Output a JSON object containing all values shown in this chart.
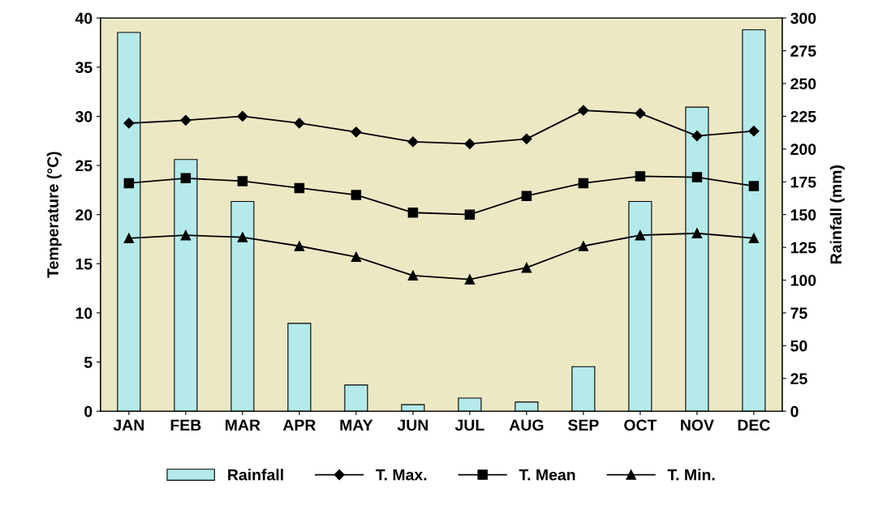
{
  "chart_data": {
    "type": "bar",
    "categories": [
      "JAN",
      "FEB",
      "MAR",
      "APR",
      "MAY",
      "JUN",
      "JUL",
      "AUG",
      "SEP",
      "OCT",
      "NOV",
      "DEC"
    ],
    "ylabel": "Temperature (°C)",
    "y2label": "Rainfall (mm)",
    "ylim": [
      0,
      40
    ],
    "yticks": [
      0,
      5,
      10,
      15,
      20,
      25,
      30,
      35,
      40
    ],
    "y2lim": [
      0,
      300
    ],
    "y2ticks": [
      0,
      25,
      50,
      75,
      100,
      125,
      150,
      175,
      200,
      225,
      250,
      275,
      300
    ],
    "grid": false,
    "legend": "bottom",
    "series": [
      {
        "name": "Rainfall",
        "axis": "y2",
        "color": "#b4eaea",
        "values": [
          289,
          192,
          160,
          67,
          20,
          5,
          10,
          7,
          34,
          160,
          232,
          291
        ]
      },
      {
        "name": "T. Max.",
        "type": "line",
        "marker": "diamond",
        "color": "#000000",
        "values": [
          29.3,
          29.6,
          30.0,
          29.3,
          28.4,
          27.4,
          27.2,
          27.7,
          30.6,
          30.3,
          28.0,
          28.5
        ]
      },
      {
        "name": "T. Mean",
        "type": "line",
        "marker": "square",
        "color": "#000000",
        "values": [
          23.2,
          23.7,
          23.4,
          22.7,
          22.0,
          20.2,
          20.0,
          21.9,
          23.2,
          23.9,
          23.8,
          22.9
        ]
      },
      {
        "name": "T. Min.",
        "type": "line",
        "marker": "triangle",
        "color": "#000000",
        "values": [
          17.6,
          17.9,
          17.7,
          16.8,
          15.7,
          13.8,
          13.4,
          14.6,
          16.8,
          17.9,
          18.1,
          17.6
        ]
      }
    ]
  }
}
